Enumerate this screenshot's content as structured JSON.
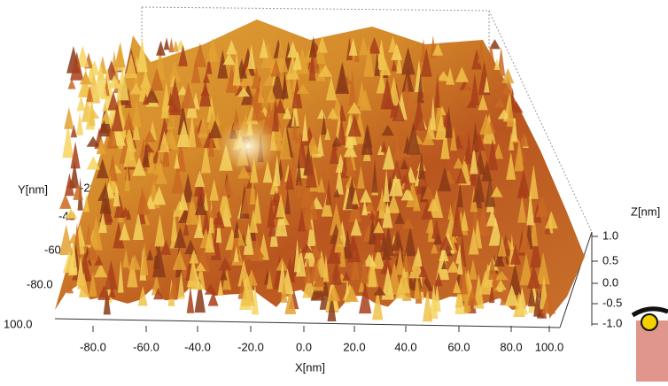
{
  "x_axis": {
    "label": "X[nm]",
    "ticks": [
      "-80.0",
      "-60.0",
      "-40.0",
      "-20.0",
      "0.0",
      "20.0",
      "40.0",
      "60.0",
      "80.0",
      "100.0"
    ],
    "start": "100.0"
  },
  "y_axis": {
    "label": "Y[nm]",
    "ticks": [
      "-20",
      "-40",
      "-60",
      "-80.0"
    ]
  },
  "z_axis": {
    "label": "Z[nm]",
    "ticks": [
      "1.0",
      "0.5",
      "0.0",
      "-0.5",
      "-1.0"
    ]
  }
}
